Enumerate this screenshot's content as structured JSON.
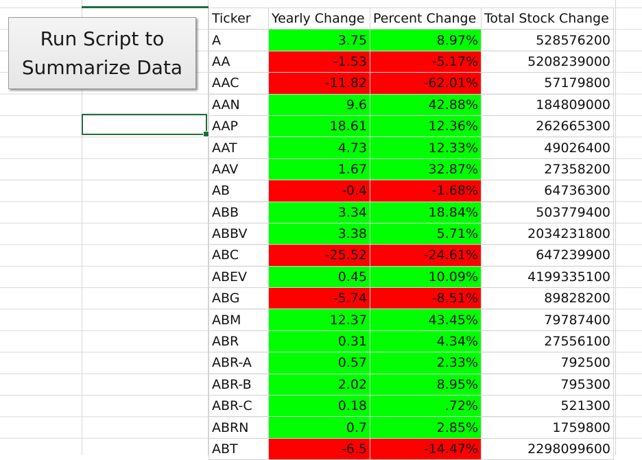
{
  "macro_button": {
    "label": "Run Script to\nSummarize Data"
  },
  "table": {
    "headers": [
      "Ticker",
      "Yearly Change",
      "Percent Change",
      "Total Stock Change"
    ],
    "rows": [
      {
        "ticker": "A",
        "yearly": "3.75",
        "percent": "8.97%",
        "total": "528576200",
        "status": "positive"
      },
      {
        "ticker": "AA",
        "yearly": "-1.53",
        "percent": "-5.17%",
        "total": "5208239000",
        "status": "negative"
      },
      {
        "ticker": "AAC",
        "yearly": "-11.82",
        "percent": "-62.01%",
        "total": "57179800",
        "status": "negative"
      },
      {
        "ticker": "AAN",
        "yearly": "9.6",
        "percent": "42.88%",
        "total": "184809000",
        "status": "positive"
      },
      {
        "ticker": "AAP",
        "yearly": "18.61",
        "percent": "12.36%",
        "total": "262665300",
        "status": "positive"
      },
      {
        "ticker": "AAT",
        "yearly": "4.73",
        "percent": "12.33%",
        "total": "49026400",
        "status": "positive"
      },
      {
        "ticker": "AAV",
        "yearly": "1.67",
        "percent": "32.87%",
        "total": "27358200",
        "status": "positive"
      },
      {
        "ticker": "AB",
        "yearly": "-0.4",
        "percent": "-1.68%",
        "total": "64736300",
        "status": "negative"
      },
      {
        "ticker": "ABB",
        "yearly": "3.34",
        "percent": "18.84%",
        "total": "503779400",
        "status": "positive"
      },
      {
        "ticker": "ABBV",
        "yearly": "3.38",
        "percent": "5.71%",
        "total": "2034231800",
        "status": "positive"
      },
      {
        "ticker": "ABC",
        "yearly": "-25.52",
        "percent": "-24.61%",
        "total": "647239900",
        "status": "negative"
      },
      {
        "ticker": "ABEV",
        "yearly": "0.45",
        "percent": "10.09%",
        "total": "4199335100",
        "status": "positive"
      },
      {
        "ticker": "ABG",
        "yearly": "-5.74",
        "percent": "-8.51%",
        "total": "89828200",
        "status": "negative"
      },
      {
        "ticker": "ABM",
        "yearly": "12.37",
        "percent": "43.45%",
        "total": "79787400",
        "status": "positive"
      },
      {
        "ticker": "ABR",
        "yearly": "0.31",
        "percent": "4.34%",
        "total": "27556100",
        "status": "positive"
      },
      {
        "ticker": "ABR-A",
        "yearly": "0.57",
        "percent": "2.33%",
        "total": "792500",
        "status": "positive"
      },
      {
        "ticker": "ABR-B",
        "yearly": "2.02",
        "percent": "8.95%",
        "total": "795300",
        "status": "positive"
      },
      {
        "ticker": "ABR-C",
        "yearly": "0.18",
        "percent": ".72%",
        "total": "521300",
        "status": "positive"
      },
      {
        "ticker": "ABRN",
        "yearly": "0.7",
        "percent": "2.85%",
        "total": "1759800",
        "status": "positive"
      },
      {
        "ticker": "ABT",
        "yearly": "-6.5",
        "percent": "-14.47%",
        "total": "2298099600",
        "status": "negative"
      }
    ]
  },
  "colors": {
    "positive": "#00ff00",
    "negative": "#ff0000",
    "selection": "#1e6e3a"
  }
}
